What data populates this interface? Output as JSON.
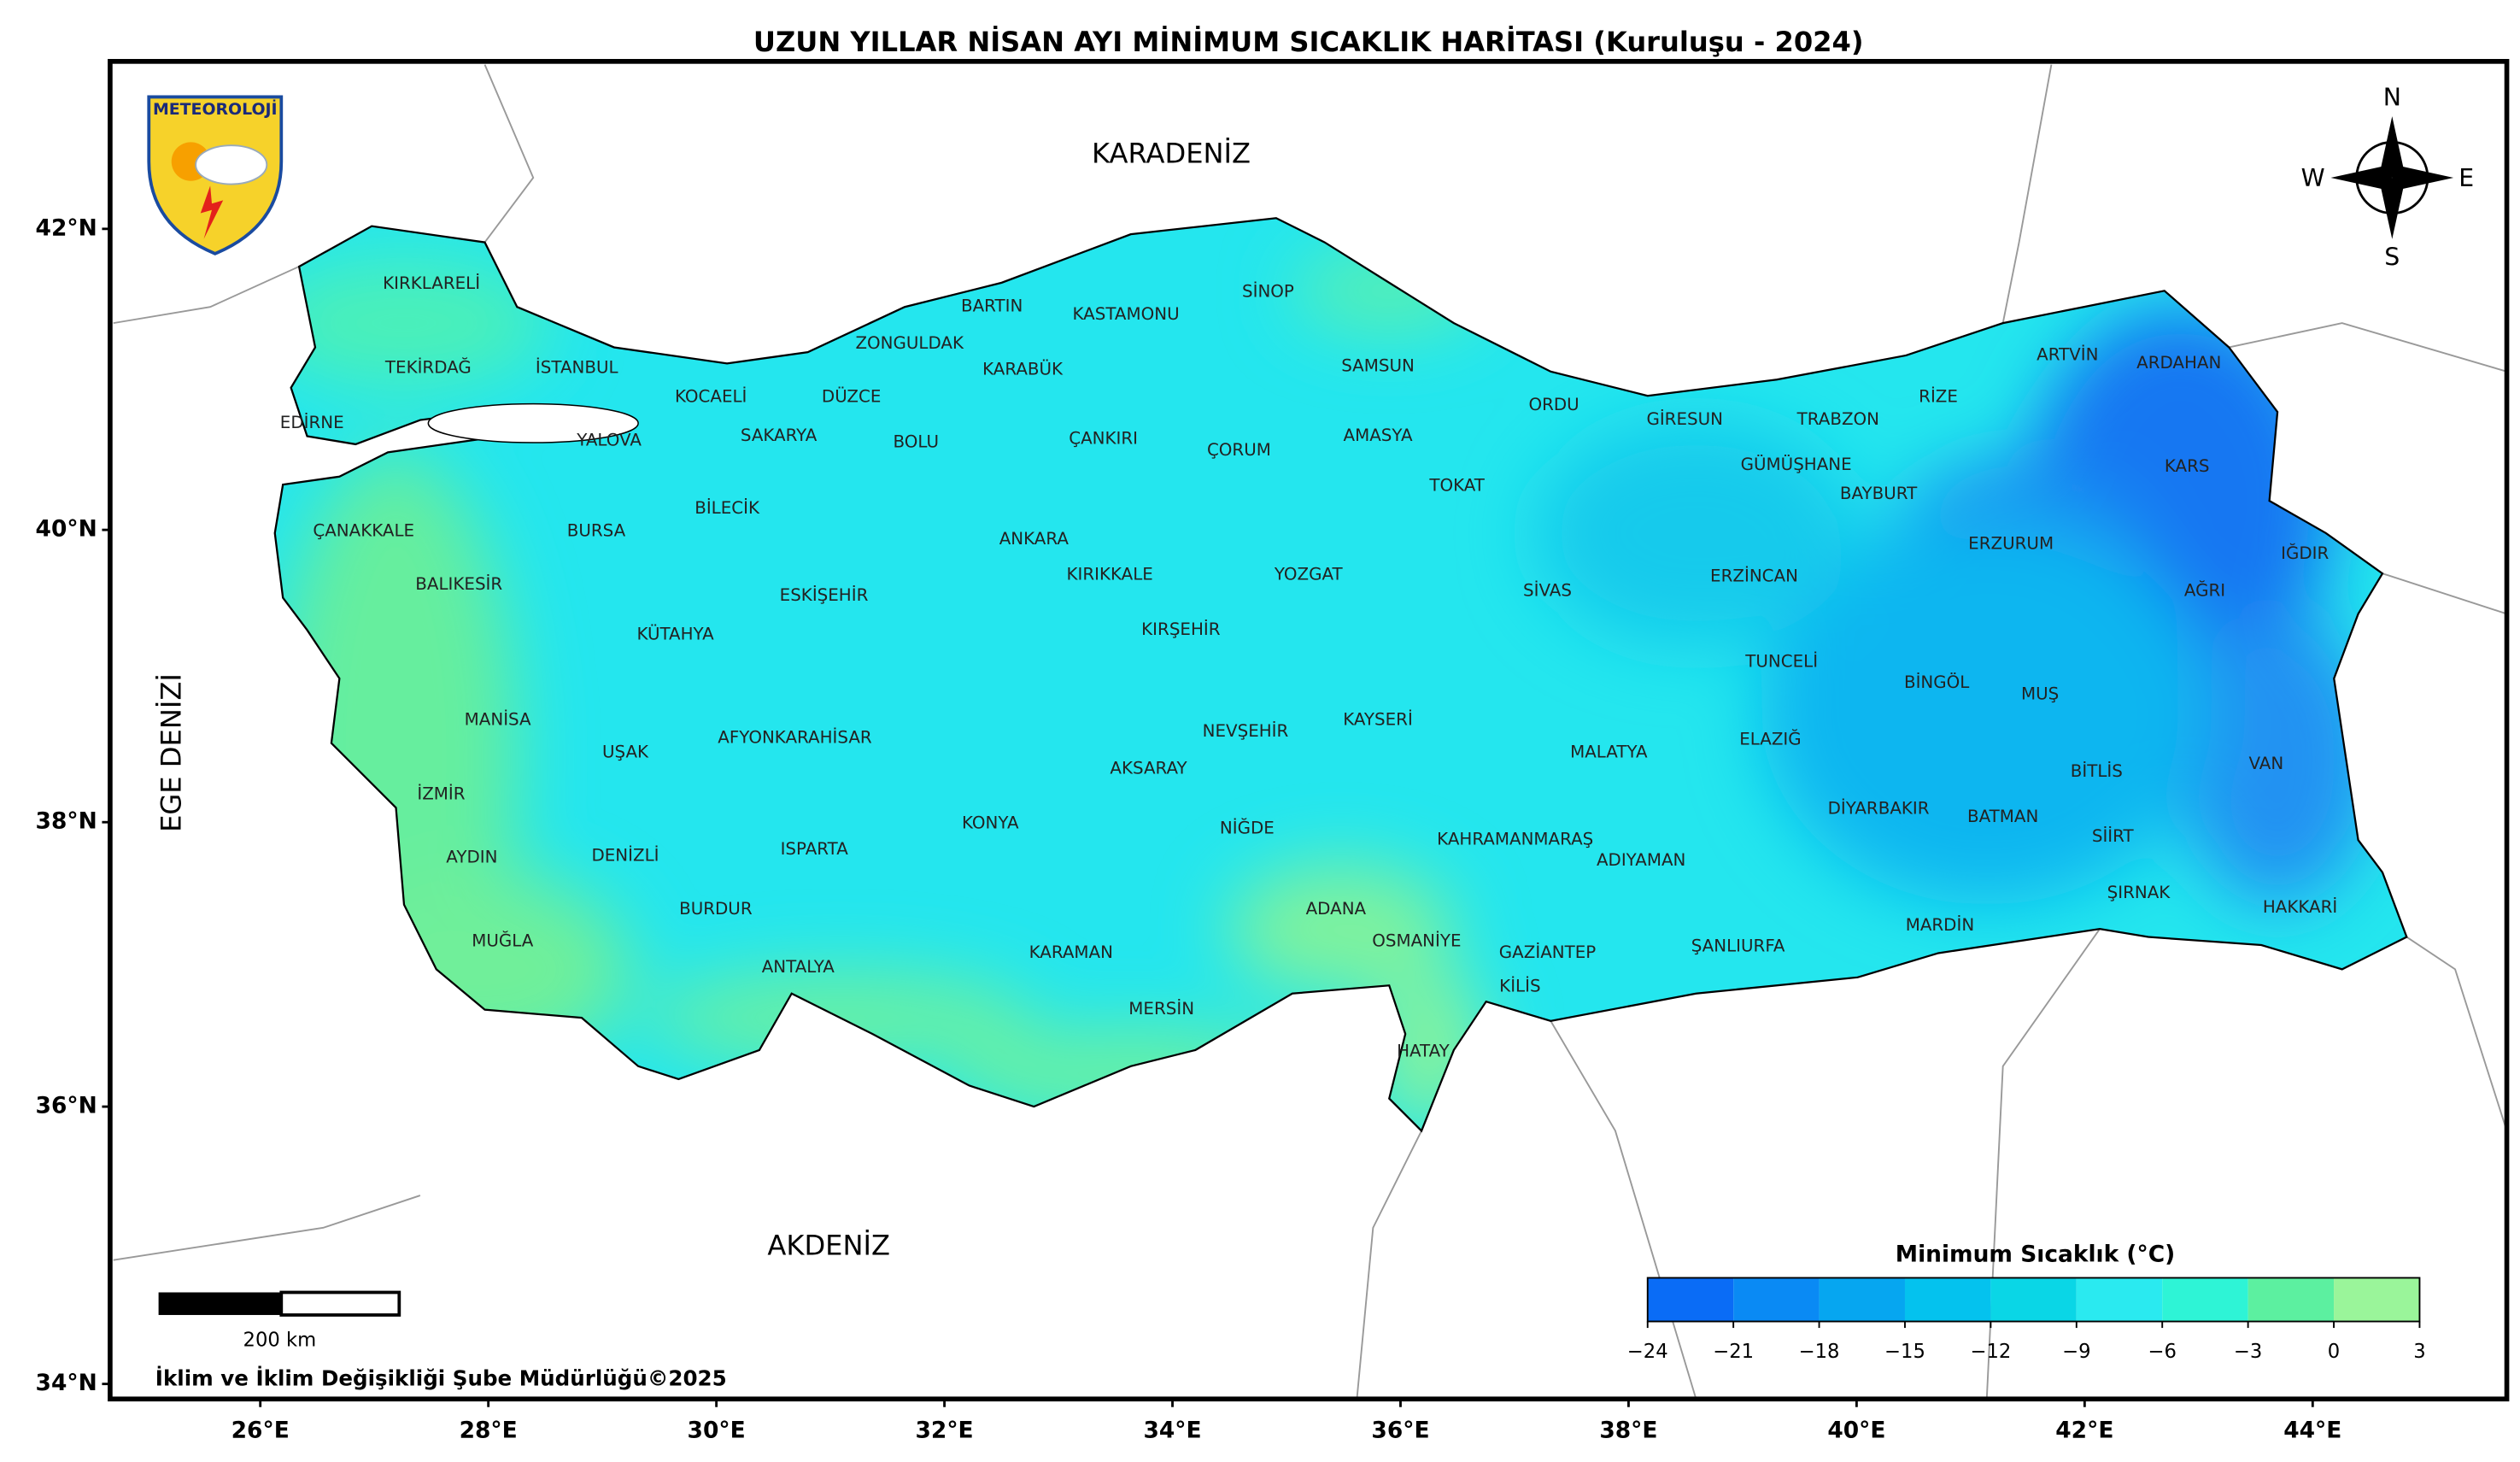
{
  "title": "UZUN YILLAR NİSAN AYI MİNİMUM SICAKLIK HARİTASI (Kuruluşu - 2024)",
  "logo": {
    "text": "METEOROLOJİ"
  },
  "compass": {
    "north": "N",
    "east": "E",
    "south": "S",
    "west": "W"
  },
  "seas": [
    "KARADENİZ",
    "AKDENİZ",
    "EGE DENİZİ"
  ],
  "provinces": [
    "KIRKLARELİ",
    "TEKİRDAĞ",
    "EDİRNE",
    "İSTANBUL",
    "KOCAELİ",
    "YALOVA",
    "SAKARYA",
    "DÜZCE",
    "ZONGULDAK",
    "BARTIN",
    "KARABÜK",
    "KASTAMONU",
    "SİNOP",
    "SAMSUN",
    "ORDU",
    "GİRESUN",
    "TRABZON",
    "RİZE",
    "ARTVİN",
    "ARDAHAN",
    "KARS",
    "IĞDIR",
    "AĞRI",
    "ERZURUM",
    "BAYBURT",
    "GÜMÜŞHANE",
    "ERZİNCAN",
    "BOLU",
    "ÇANKIRI",
    "ÇORUM",
    "AMASYA",
    "TOKAT",
    "SİVAS",
    "ÇANAKKALE",
    "BALIKESİR",
    "BURSA",
    "BİLECİK",
    "ESKİŞEHİR",
    "KÜTAHYA",
    "ANKARA",
    "KIRIKKALE",
    "YOZGAT",
    "KIRŞEHİR",
    "NEVŞEHİR",
    "KAYSERİ",
    "MANİSA",
    "UŞAK",
    "AFYONKARAHİSAR",
    "İZMİR",
    "AYDIN",
    "DENİZLİ",
    "MUĞLA",
    "BURDUR",
    "ISPARTA",
    "ANTALYA",
    "KONYA",
    "AKSARAY",
    "NİĞDE",
    "KARAMAN",
    "MERSİN",
    "ADANA",
    "OSMANİYE",
    "HATAY",
    "KAHRAMANMARAŞ",
    "GAZİANTEP",
    "KİLİS",
    "ADIYAMAN",
    "MALATYA",
    "ŞANLIURFA",
    "TUNCELİ",
    "ELAZIĞ",
    "BİNGÖL",
    "MUŞ",
    "DİYARBAKIR",
    "BATMAN",
    "BİTLİS",
    "SİİRT",
    "VAN",
    "ŞIRNAK",
    "HAKKARİ",
    "MARDİN"
  ],
  "axes": {
    "lon_ticks": [
      {
        "value": 26,
        "label": "26°E"
      },
      {
        "value": 28,
        "label": "28°E"
      },
      {
        "value": 30,
        "label": "30°E"
      },
      {
        "value": 32,
        "label": "32°E"
      },
      {
        "value": 34,
        "label": "34°E"
      },
      {
        "value": 36,
        "label": "36°E"
      },
      {
        "value": 38,
        "label": "38°E"
      },
      {
        "value": 40,
        "label": "40°E"
      },
      {
        "value": 42,
        "label": "42°E"
      },
      {
        "value": 44,
        "label": "44°E"
      }
    ],
    "lat_ticks": [
      {
        "value": 34,
        "label": "34°N"
      },
      {
        "value": 36,
        "label": "36°N"
      },
      {
        "value": 38,
        "label": "38°N"
      },
      {
        "value": 40,
        "label": "40°N"
      },
      {
        "value": 42,
        "label": "42°N"
      }
    ]
  },
  "legend": {
    "title": "Minimum Sıcaklık (°C)",
    "ticks": [
      {
        "value": -24,
        "label": "−24"
      },
      {
        "value": -21,
        "label": "−21"
      },
      {
        "value": -18,
        "label": "−18"
      },
      {
        "value": -15,
        "label": "−15"
      },
      {
        "value": -12,
        "label": "−12"
      },
      {
        "value": -9,
        "label": "−9"
      },
      {
        "value": -6,
        "label": "−6"
      },
      {
        "value": -3,
        "label": "−3"
      },
      0,
      3
    ],
    "colors": [
      "#0a6cf6",
      "#0a8af4",
      "#06a6f0",
      "#04c2ee",
      "#0ad6e6",
      "#2aeaf0",
      "#2ef4d6",
      "#5cf0a0",
      "#9af59a"
    ]
  },
  "scale_bar": {
    "label": "200 km"
  },
  "footer": "İklim ve İklim Değişikliği Şube Müdürlüğü©2025"
}
